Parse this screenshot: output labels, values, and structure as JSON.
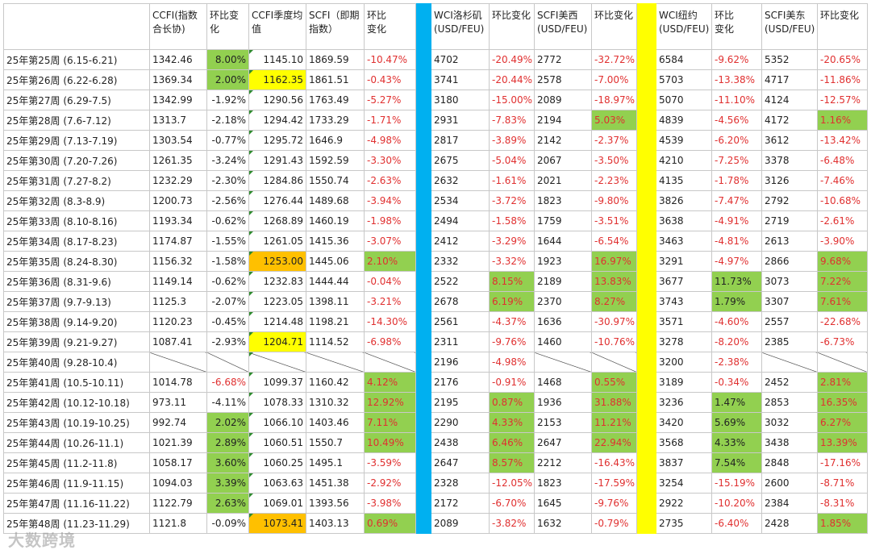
{
  "headers": [
    "",
    "CCFI(指数合长协)",
    "环比变化",
    "CCFI季度均值",
    "SCFI（即期指数）",
    "环比　　变化",
    "",
    "WCI洛杉矶(USD/FEU)",
    "环比变化",
    "SCFI美西(USD/FEU)",
    "环比变化",
    "",
    "WCI纽约(USD/FEU)",
    "环比　　变化",
    "SCFI美东(USD/FEU)",
    "环比变化"
  ],
  "rows": [
    {
      "week": "25年第25周 (6.15-6.21)",
      "ccfi": "1342.46",
      "ccfi_chg": "8.00%",
      "avg": "1145.10",
      "scfi": "1869.59",
      "scfi_chg": "-10.47%",
      "wla": "4702",
      "wla_chg": "-20.49%",
      "sw": "2772",
      "sw_chg": "-32.72%",
      "wny": "6584",
      "wny_chg": "-9.62%",
      "se": "5352",
      "se_chg": "-20.65%"
    },
    {
      "week": "25年第26周 (6.22-6.28)",
      "ccfi": "1369.34",
      "ccfi_chg": "2.00%",
      "avg": "1162.35",
      "scfi": "1861.51",
      "scfi_chg": "-0.43%",
      "wla": "3741",
      "wla_chg": "-20.44%",
      "sw": "2578",
      "sw_chg": "-7.00%",
      "wny": "5703",
      "wny_chg": "-13.38%",
      "se": "4717",
      "se_chg": "-11.86%"
    },
    {
      "week": "25年第27周 (6.29-7.5)",
      "ccfi": "1342.99",
      "ccfi_chg": "-1.92%",
      "avg": "1290.56",
      "scfi": "1763.49",
      "scfi_chg": "-5.27%",
      "wla": "3180",
      "wla_chg": "-15.00%",
      "sw": "2089",
      "sw_chg": "-18.97%",
      "wny": "5070",
      "wny_chg": "-11.10%",
      "se": "4124",
      "se_chg": "-12.57%"
    },
    {
      "week": "25年第28周 (7.6-7.12)",
      "ccfi": "1313.7",
      "ccfi_chg": "-2.18%",
      "avg": "1294.42",
      "scfi": "1733.29",
      "scfi_chg": "-1.71%",
      "wla": "2931",
      "wla_chg": "-7.83%",
      "sw": "2194",
      "sw_chg": "5.03%",
      "wny": "4839",
      "wny_chg": "-4.56%",
      "se": "4172",
      "se_chg": "1.16%"
    },
    {
      "week": "25年第29周 (7.13-7.19)",
      "ccfi": "1303.54",
      "ccfi_chg": "-0.77%",
      "avg": "1295.72",
      "scfi": "1646.9",
      "scfi_chg": "-4.98%",
      "wla": "2817",
      "wla_chg": "-3.89%",
      "sw": "2142",
      "sw_chg": "-2.37%",
      "wny": "4539",
      "wny_chg": "-6.20%",
      "se": "3612",
      "se_chg": "-13.42%"
    },
    {
      "week": "25年第30周 (7.20-7.26)",
      "ccfi": "1261.35",
      "ccfi_chg": "-3.24%",
      "avg": "1291.43",
      "scfi": "1592.59",
      "scfi_chg": "-3.30%",
      "wla": "2675",
      "wla_chg": "-5.04%",
      "sw": "2067",
      "sw_chg": "-3.50%",
      "wny": "4210",
      "wny_chg": "-7.25%",
      "se": "3378",
      "se_chg": "-6.48%"
    },
    {
      "week": "25年第31周 (7.27-8.2)",
      "ccfi": "1232.29",
      "ccfi_chg": "-2.30%",
      "avg": "1284.86",
      "scfi": "1550.74",
      "scfi_chg": "-2.63%",
      "wla": "2632",
      "wla_chg": "-1.61%",
      "sw": "2021",
      "sw_chg": "-2.23%",
      "wny": "4135",
      "wny_chg": "-1.78%",
      "se": "3126",
      "se_chg": "-7.46%"
    },
    {
      "week": "25年第32周 (8.3-8.9)",
      "ccfi": "1200.73",
      "ccfi_chg": "-2.56%",
      "avg": "1276.44",
      "scfi": "1489.68",
      "scfi_chg": "-3.94%",
      "wla": "2534",
      "wla_chg": "-3.72%",
      "sw": "1823",
      "sw_chg": "-9.80%",
      "wny": "3826",
      "wny_chg": "-7.47%",
      "se": "2792",
      "se_chg": "-10.68%"
    },
    {
      "week": "25年第33周 (8.10-8.16)",
      "ccfi": "1193.34",
      "ccfi_chg": "-0.62%",
      "avg": "1268.89",
      "scfi": "1460.19",
      "scfi_chg": "-1.98%",
      "wla": "2494",
      "wla_chg": "-1.58%",
      "sw": "1759",
      "sw_chg": "-3.51%",
      "wny": "3638",
      "wny_chg": "-4.91%",
      "se": "2719",
      "se_chg": "-2.61%"
    },
    {
      "week": "25年第34周 (8.17-8.23)",
      "ccfi": "1174.87",
      "ccfi_chg": "-1.55%",
      "avg": "1261.05",
      "scfi": "1415.36",
      "scfi_chg": "-3.07%",
      "wla": "2412",
      "wla_chg": "-3.29%",
      "sw": "1644",
      "sw_chg": "-6.54%",
      "wny": "3463",
      "wny_chg": "-4.81%",
      "se": "2613",
      "se_chg": "-3.90%"
    },
    {
      "week": "25年第35周 (8.24-8.30)",
      "ccfi": "1156.32",
      "ccfi_chg": "-1.58%",
      "avg": "1253.00",
      "scfi": "1445.06",
      "scfi_chg": "2.10%",
      "wla": "2332",
      "wla_chg": "-3.32%",
      "sw": "1923",
      "sw_chg": "16.97%",
      "wny": "3291",
      "wny_chg": "-4.97%",
      "se": "2866",
      "se_chg": "9.68%"
    },
    {
      "week": "25年第36周 (8.31-9.6)",
      "ccfi": "1149.14",
      "ccfi_chg": "-0.62%",
      "avg": "1232.83",
      "scfi": "1444.44",
      "scfi_chg": "-0.04%",
      "wla": "2522",
      "wla_chg": "8.15%",
      "sw": "2189",
      "sw_chg": "13.83%",
      "wny": "3677",
      "wny_chg": "11.73%",
      "se": "3073",
      "se_chg": "7.22%"
    },
    {
      "week": "25年第37周 (9.7-9.13)",
      "ccfi": "1125.3",
      "ccfi_chg": "-2.07%",
      "avg": "1223.05",
      "scfi": "1398.11",
      "scfi_chg": "-3.21%",
      "wla": "2678",
      "wla_chg": "6.19%",
      "sw": "2370",
      "sw_chg": "8.27%",
      "wny": "3743",
      "wny_chg": "1.79%",
      "se": "3307",
      "se_chg": "7.61%"
    },
    {
      "week": "25年第38周 (9.14-9.20)",
      "ccfi": "1120.23",
      "ccfi_chg": "-0.45%",
      "avg": "1214.48",
      "scfi": "1198.21",
      "scfi_chg": "-14.30%",
      "wla": "2561",
      "wla_chg": "-4.37%",
      "sw": "1636",
      "sw_chg": "-30.97%",
      "wny": "3571",
      "wny_chg": "-4.60%",
      "se": "2557",
      "se_chg": "-22.68%"
    },
    {
      "week": "25年第39周 (9.21-9.27)",
      "ccfi": "1087.41",
      "ccfi_chg": "-2.93%",
      "avg": "1204.71",
      "scfi": "1114.52",
      "scfi_chg": "-6.98%",
      "wla": "2311",
      "wla_chg": "-9.76%",
      "sw": "1460",
      "sw_chg": "-10.76%",
      "wny": "3278",
      "wny_chg": "-8.20%",
      "se": "2385",
      "se_chg": "-6.73%"
    },
    {
      "week": "25年第40周 (9.28-10.4)",
      "ccfi": "",
      "ccfi_chg": "",
      "avg": "",
      "scfi": "",
      "scfi_chg": "",
      "wla": "2196",
      "wla_chg": "-4.98%",
      "sw": "",
      "sw_chg": "",
      "wny": "3200",
      "wny_chg": "-2.38%",
      "se": "",
      "se_chg": ""
    },
    {
      "week": "25年第41周 (10.5-10.11)",
      "ccfi": "1014.78",
      "ccfi_chg": "-6.68%",
      "avg": "1099.37",
      "scfi": "1160.42",
      "scfi_chg": "4.12%",
      "wla": "2176",
      "wla_chg": "-0.91%",
      "sw": "1468",
      "sw_chg": "0.55%",
      "wny": "3189",
      "wny_chg": "-0.34%",
      "se": "2452",
      "se_chg": "2.81%"
    },
    {
      "week": "25年第42周 (10.12-10.18)",
      "ccfi": "973.11",
      "ccfi_chg": "-4.11%",
      "avg": "1078.33",
      "scfi": "1310.32",
      "scfi_chg": "12.92%",
      "wla": "2195",
      "wla_chg": "0.87%",
      "sw": "1936",
      "sw_chg": "31.88%",
      "wny": "3236",
      "wny_chg": "1.47%",
      "se": "2853",
      "se_chg": "16.35%"
    },
    {
      "week": "25年第43周 (10.19-10.25)",
      "ccfi": "992.74",
      "ccfi_chg": "2.02%",
      "avg": "1066.10",
      "scfi": "1403.46",
      "scfi_chg": "7.11%",
      "wla": "2290",
      "wla_chg": "4.33%",
      "sw": "2153",
      "sw_chg": "11.21%",
      "wny": "3420",
      "wny_chg": "5.69%",
      "se": "3032",
      "se_chg": "6.27%"
    },
    {
      "week": "25年第44周 (10.26-11.1)",
      "ccfi": "1021.39",
      "ccfi_chg": "2.89%",
      "avg": "1060.51",
      "scfi": "1550.7",
      "scfi_chg": "10.49%",
      "wla": "2438",
      "wla_chg": "6.46%",
      "sw": "2647",
      "sw_chg": "22.94%",
      "wny": "3568",
      "wny_chg": "4.33%",
      "se": "3438",
      "se_chg": "13.39%"
    },
    {
      "week": "25年第45周 (11.2-11.8)",
      "ccfi": "1058.17",
      "ccfi_chg": "3.60%",
      "avg": "1060.25",
      "scfi": "1495.1",
      "scfi_chg": "-3.59%",
      "wla": "2647",
      "wla_chg": "8.57%",
      "sw": "2212",
      "sw_chg": "-16.43%",
      "wny": "3837",
      "wny_chg": "7.54%",
      "se": "2848",
      "se_chg": "-17.16%"
    },
    {
      "week": "25年第46周 (11.9-11.15)",
      "ccfi": "1094.03",
      "ccfi_chg": "3.39%",
      "avg": "1063.63",
      "scfi": "1451.38",
      "scfi_chg": "-2.92%",
      "wla": "2328",
      "wla_chg": "-12.05%",
      "sw": "1823",
      "sw_chg": "-17.59%",
      "wny": "3254",
      "wny_chg": "-15.19%",
      "se": "2600",
      "se_chg": "-8.71%"
    },
    {
      "week": "25年第47周 (11.16-11.22)",
      "ccfi": "1122.79",
      "ccfi_chg": "2.63%",
      "avg": "1069.01",
      "scfi": "1393.56",
      "scfi_chg": "-3.98%",
      "wla": "2172",
      "wla_chg": "-6.70%",
      "sw": "1645",
      "sw_chg": "-9.76%",
      "wny": "2922",
      "wny_chg": "-10.20%",
      "se": "2384",
      "se_chg": "-8.31%"
    },
    {
      "week": "25年第48周 (11.23-11.29)",
      "ccfi": "1121.8",
      "ccfi_chg": "-0.09%",
      "avg": "1073.41",
      "scfi": "1403.13",
      "scfi_chg": "0.69%",
      "wla": "2089",
      "wla_chg": "-3.82%",
      "sw": "1632",
      "sw_chg": "-0.79%",
      "wny": "2735",
      "wny_chg": "-6.40%",
      "se": "2428",
      "se_chg": "1.85%"
    }
  ],
  "highlights": {
    "ccfi_chg": {
      "0": "green",
      "1": "green",
      "18": "green",
      "19": "green",
      "20": "green",
      "21": "green",
      "22": "green"
    },
    "avg": {
      "1": "yellow",
      "10": "orange",
      "14": "yellow",
      "23": "orange"
    },
    "scfi_chg": {
      "10": "green",
      "16": "green",
      "17": "green",
      "18": "green",
      "19": "green",
      "23": "green"
    },
    "wla_chg": {
      "11": "green",
      "12": "green",
      "17": "green",
      "18": "green",
      "19": "green",
      "20": "green"
    },
    "sw_chg": {
      "3": "green",
      "10": "green",
      "11": "green",
      "12": "green",
      "16": "green",
      "17": "green",
      "18": "green",
      "19": "green"
    },
    "wny_chg": {
      "11": "green",
      "12": "green",
      "17": "green",
      "18": "green",
      "19": "green",
      "20": "green"
    },
    "se_chg": {
      "3": "green",
      "10": "green",
      "11": "green",
      "12": "green",
      "16": "green",
      "17": "green",
      "18": "green",
      "19": "green",
      "23": "green"
    }
  },
  "colors": {
    "green": "#92d050",
    "yellow": "#ffff00",
    "orange": "#ffc000",
    "blue_separator": "#00b0f0",
    "yellow_separator": "#ffff00",
    "negative_text": "#e03030"
  },
  "watermark": "大数跨境"
}
